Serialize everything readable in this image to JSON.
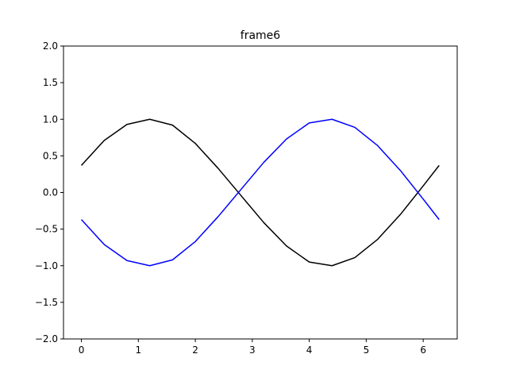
{
  "chart_data": {
    "type": "line",
    "title": "frame6",
    "xlabel": "",
    "ylabel": "",
    "xlim": [
      -0.314,
      6.597
    ],
    "ylim": [
      -2.0,
      2.0
    ],
    "x_ticks": [
      0,
      1,
      2,
      3,
      4,
      5,
      6
    ],
    "y_ticks": [
      -2.0,
      -1.5,
      -1.0,
      -0.5,
      0.0,
      0.5,
      1.0,
      1.5,
      2.0
    ],
    "x_tick_labels": [
      "0",
      "1",
      "2",
      "3",
      "4",
      "5",
      "6"
    ],
    "y_tick_labels": [
      "−2.0",
      "−1.5",
      "−1.0",
      "−0.5",
      "0.0",
      "0.5",
      "1.0",
      "1.5",
      "2.0"
    ],
    "grid": false,
    "x": [
      0,
      0.4,
      0.8,
      1.2,
      1.6,
      2.0,
      2.4,
      2.8,
      3.2,
      3.6,
      4.0,
      4.4,
      4.8,
      5.2,
      5.6,
      6.0,
      6.28
    ],
    "series": [
      {
        "color": "#000000",
        "values": [
          0.37,
          0.71,
          0.93,
          1.0,
          0.92,
          0.67,
          0.33,
          -0.04,
          -0.41,
          -0.73,
          -0.95,
          -1.0,
          -0.89,
          -0.64,
          -0.3,
          0.09,
          0.37
        ]
      },
      {
        "color": "#0000ff",
        "values": [
          -0.37,
          -0.71,
          -0.93,
          -1.0,
          -0.92,
          -0.67,
          -0.33,
          0.04,
          0.41,
          0.73,
          0.95,
          1.0,
          0.89,
          0.64,
          0.3,
          -0.09,
          -0.37
        ]
      }
    ]
  }
}
